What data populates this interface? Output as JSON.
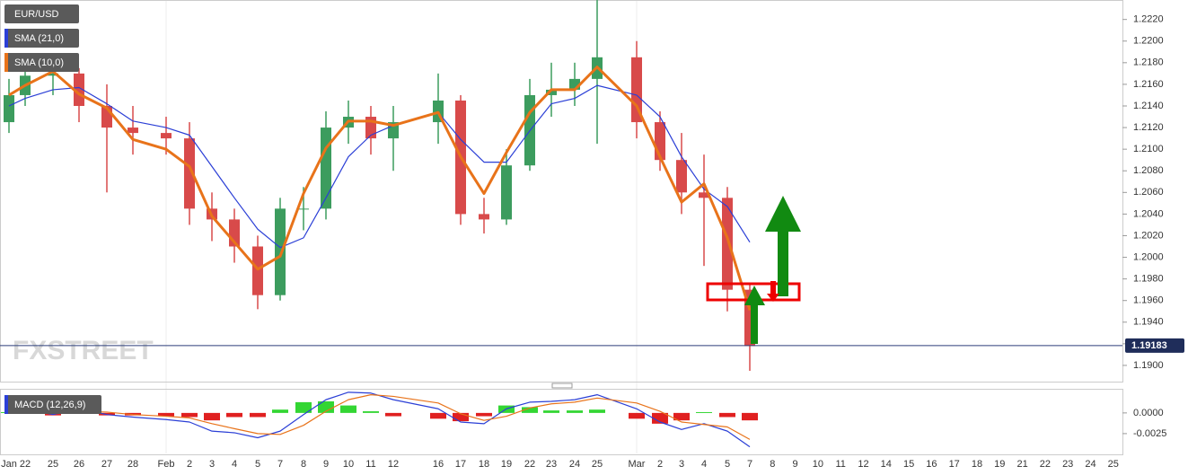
{
  "chart_data": [
    {
      "type": "candlestick",
      "title": "EUR/USD",
      "watermark": "FXSTREET",
      "categories": [
        "Jan",
        "22",
        "25",
        "26",
        "27",
        "28",
        "Feb",
        "2",
        "3",
        "4",
        "5",
        "7",
        "8",
        "9",
        "10",
        "11",
        "12",
        "16",
        "17",
        "18",
        "19",
        "22",
        "23",
        "24",
        "25",
        "Mar",
        "2",
        "3",
        "4",
        "5",
        "7",
        "8",
        "9",
        "10",
        "11",
        "12",
        "14",
        "15",
        "16",
        "17",
        "18",
        "19",
        "21",
        "22",
        "23",
        "24",
        "25"
      ],
      "open": [
        1.2125,
        1.215,
        1.2168,
        1.217,
        1.214,
        1.212,
        1.2115,
        1.211,
        1.2045,
        1.2035,
        1.201,
        1.1965,
        1.2045,
        1.2045,
        1.212,
        1.213,
        1.211,
        1.2125,
        1.2145,
        1.204,
        1.2035,
        1.2085,
        1.215,
        1.2155,
        1.2165,
        1.2185,
        1.2125,
        1.209,
        1.206,
        1.2055,
        1.197,
        null,
        null,
        null,
        null,
        null,
        null,
        null,
        null,
        null,
        null,
        null,
        null,
        null,
        null,
        null,
        null
      ],
      "high": [
        1.2165,
        1.218,
        1.2185,
        1.2175,
        1.216,
        1.214,
        1.213,
        1.2125,
        1.206,
        1.2045,
        1.202,
        1.2055,
        1.2065,
        1.2135,
        1.2145,
        1.214,
        1.214,
        1.217,
        1.215,
        1.2055,
        1.21,
        1.2165,
        1.218,
        1.218,
        1.224,
        1.22,
        1.2135,
        1.2115,
        1.2095,
        1.2065,
        1.1975,
        null,
        null,
        null,
        null,
        null,
        null,
        null,
        null,
        null,
        null,
        null,
        null,
        null,
        null,
        null,
        null
      ],
      "low": [
        1.2115,
        1.214,
        1.215,
        1.2125,
        1.206,
        1.2095,
        1.2095,
        1.203,
        1.2015,
        1.1995,
        1.1952,
        1.196,
        1.2025,
        1.2035,
        1.2105,
        1.2095,
        1.208,
        1.2105,
        1.203,
        1.2022,
        1.203,
        1.208,
        1.213,
        1.214,
        1.2105,
        1.211,
        1.208,
        1.204,
        1.1992,
        1.195,
        1.1895,
        null,
        null,
        null,
        null,
        null,
        null,
        null,
        null,
        null,
        null,
        null,
        null,
        null,
        null,
        null,
        null
      ],
      "close": [
        1.215,
        1.2168,
        1.217,
        1.214,
        1.212,
        1.2115,
        1.211,
        1.2045,
        1.2035,
        1.201,
        1.1965,
        1.2045,
        1.2045,
        1.212,
        1.213,
        1.211,
        1.2125,
        1.2145,
        1.204,
        1.2035,
        1.2085,
        1.215,
        1.2155,
        1.2165,
        1.2185,
        1.2125,
        1.209,
        1.206,
        1.2055,
        1.197,
        1.1918,
        null,
        null,
        null,
        null,
        null,
        null,
        null,
        null,
        null,
        null,
        null,
        null,
        null,
        null,
        null,
        null
      ],
      "up_color": "#3c9c5e",
      "down_color": "#d84a4a",
      "series": [
        {
          "name": "SMA (21,0)",
          "color": "#2b3fd6",
          "values": [
            1.214,
            1.2147,
            1.2155,
            1.2157,
            1.2142,
            1.2126,
            1.212,
            1.2113,
            1.2084,
            1.2055,
            1.2026,
            1.2009,
            1.2018,
            1.2055,
            1.2093,
            1.2113,
            1.2122,
            1.2134,
            1.2109,
            1.2088,
            1.2088,
            1.2117,
            1.2142,
            1.2147,
            1.2159,
            1.215,
            1.213,
            1.2093,
            1.2063,
            1.2047,
            1.2014,
            null,
            null,
            null,
            null,
            null,
            null,
            null,
            null,
            null,
            null,
            null,
            null,
            null,
            null,
            null,
            null
          ]
        },
        {
          "name": "SMA (10,0)",
          "color": "#e8731a",
          "values": [
            1.215,
            1.2159,
            1.2172,
            1.2151,
            1.2138,
            1.2109,
            1.21,
            1.2084,
            1.2038,
            1.2014,
            1.1989,
            1.2001,
            1.2059,
            1.2101,
            1.2126,
            1.2126,
            1.2122,
            1.2134,
            1.2093,
            1.2059,
            1.2097,
            1.2134,
            1.2155,
            1.2155,
            1.2176,
            1.214,
            1.2093,
            1.2051,
            1.2068,
            1.2018,
            1.1951,
            null,
            null,
            null,
            null,
            null,
            null,
            null,
            null,
            null,
            null,
            null,
            null,
            null,
            null,
            null,
            null
          ]
        }
      ],
      "last_value": 1.19183,
      "ylim": [
        1.1885,
        1.2238
      ],
      "yticks": [
        {
          "value": 1.19,
          "label": "1.1900"
        },
        {
          "value": 1.192,
          "label": "1.1920"
        },
        {
          "value": 1.194,
          "label": "1.1940"
        },
        {
          "value": 1.196,
          "label": "1.1960"
        },
        {
          "value": 1.198,
          "label": "1.1980"
        },
        {
          "value": 1.2,
          "label": "1.2000"
        },
        {
          "value": 1.202,
          "label": "1.2020"
        },
        {
          "value": 1.204,
          "label": "1.2040"
        },
        {
          "value": 1.206,
          "label": "1.2060"
        },
        {
          "value": 1.208,
          "label": "1.2080"
        },
        {
          "value": 1.21,
          "label": "1.2100"
        },
        {
          "value": 1.212,
          "label": "1.2120"
        },
        {
          "value": 1.214,
          "label": "1.2140"
        },
        {
          "value": 1.216,
          "label": "1.2160"
        },
        {
          "value": 1.218,
          "label": "1.2180"
        },
        {
          "value": 1.22,
          "label": "1.2200"
        },
        {
          "value": 1.222,
          "label": "1.2220"
        }
      ]
    },
    {
      "type": "macd",
      "title": "MACD (12,26,9)",
      "macd": {
        "color": "#2b3fd6",
        "values": [
          0.0003,
          0.0005,
          -0.0002,
          0.0005,
          -0.0002,
          -0.0005,
          -0.0008,
          -0.0011,
          -0.0022,
          -0.0024,
          -0.003,
          -0.0022,
          -0.0002,
          0.0016,
          0.0025,
          0.0024,
          0.0016,
          0.0005,
          -0.0011,
          -0.0013,
          0.0005,
          0.0013,
          0.0014,
          0.0016,
          0.0022,
          0.0005,
          -0.0011,
          -0.002,
          -0.0013,
          -0.0022,
          -0.0041,
          null,
          null,
          null,
          null,
          null,
          null,
          null,
          null,
          null,
          null,
          null,
          null,
          null,
          null,
          null,
          null
        ]
      },
      "signal": {
        "color": "#e8731a",
        "values": [
          0.0002,
          0.0003,
          0.0001,
          0.0002,
          0.0001,
          -0.0002,
          -0.0004,
          -0.0006,
          -0.0013,
          -0.0019,
          -0.0025,
          -0.0026,
          -0.0015,
          0.0002,
          0.0016,
          0.0022,
          0.002,
          0.0012,
          -0.0001,
          -0.0009,
          -0.0004,
          0.0006,
          0.0011,
          0.0013,
          0.0018,
          0.0012,
          0.0002,
          -0.0011,
          -0.0014,
          -0.0017,
          -0.0032,
          null,
          null,
          null,
          null,
          null,
          null,
          null,
          null,
          null,
          null,
          null,
          null,
          null,
          null,
          null,
          null
        ]
      },
      "histogram": {
        "positive_color": "#33d633",
        "negative_color": "#e02020",
        "values": [
          0.0001,
          0.0002,
          -0.0003,
          0.0003,
          -0.0003,
          -0.0003,
          -0.0004,
          -0.0005,
          -0.0009,
          -0.0005,
          -0.0005,
          0.0004,
          0.0013,
          0.0014,
          0.0009,
          0.0002,
          -0.0004,
          -0.0007,
          -0.001,
          -0.0004,
          0.0009,
          0.0007,
          0.0003,
          0.0003,
          0.0004,
          -0.0007,
          -0.0013,
          -0.0009,
          0.0001,
          -0.0005,
          -0.0009,
          null,
          null,
          null,
          null,
          null,
          null,
          null,
          null,
          null,
          null,
          null,
          null,
          null,
          null,
          null,
          null
        ]
      },
      "ylim": [
        -0.0049,
        0.0027
      ],
      "yticks": [
        {
          "value": 0,
          "label": "0.0000"
        },
        {
          "value": -0.0025,
          "label": "-0.0025"
        }
      ]
    }
  ]
}
